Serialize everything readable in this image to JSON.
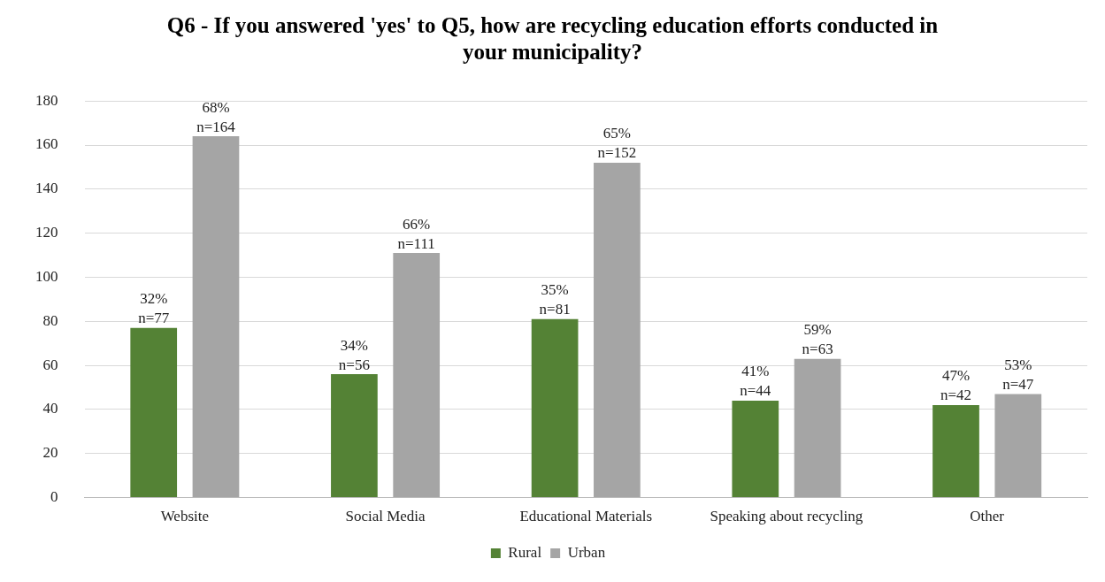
{
  "chart_data": {
    "type": "bar",
    "title": "Q6 - If you answered 'yes' to Q5, how are recycling education efforts conducted in your municipality?",
    "categories": [
      "Website",
      "Social Media",
      "Educational Materials",
      "Speaking about recycling",
      "Other"
    ],
    "series": [
      {
        "name": "Rural",
        "color": "#548235",
        "values": [
          77,
          56,
          81,
          44,
          42
        ],
        "value_labels": [
          "32%\nn=77",
          "34%\nn=56",
          "35%\nn=81",
          "41%\nn=44",
          "47%\nn=42"
        ]
      },
      {
        "name": "Urban",
        "color": "#a5a5a5",
        "values": [
          164,
          111,
          152,
          63,
          47
        ],
        "value_labels": [
          "68%\nn=164",
          "66%\nn=111",
          "65%\nn=152",
          "59%\nn=63",
          "53%\nn=47"
        ]
      }
    ],
    "ylim": [
      0,
      180
    ],
    "yticks": [
      0,
      20,
      40,
      60,
      80,
      100,
      120,
      140,
      160,
      180
    ],
    "grid": "y",
    "legend": "bottom"
  }
}
